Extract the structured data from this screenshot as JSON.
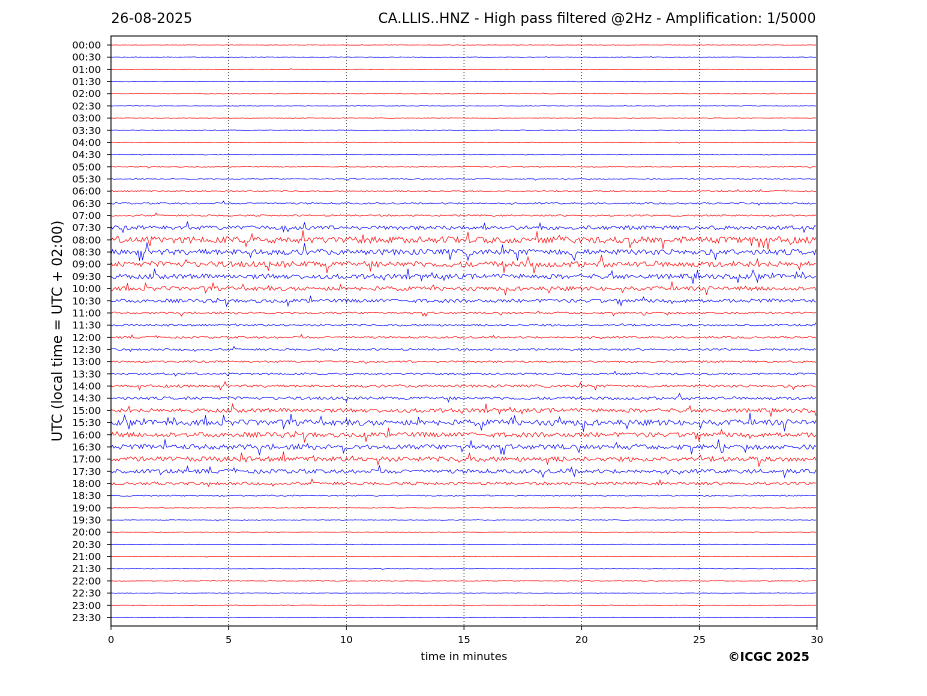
{
  "header": {
    "date": "26-08-2025",
    "title": "CA.LLIS..HNZ - High pass filtered @2Hz - Amplification: 1/5000"
  },
  "footer": {
    "copyright": "©ICGC 2025"
  },
  "chart_data": {
    "type": "line",
    "xlabel": "time in minutes",
    "ylabel": "UTC (local time = UTC + 02:00)",
    "xlim": [
      0,
      30
    ],
    "x_ticks": [
      0,
      5,
      10,
      15,
      20,
      25,
      30
    ],
    "grid": "vertical dotted lines at 5, 10, 15, 20, 25",
    "trace_colors": [
      "#ff0000",
      "#0000ff"
    ],
    "y_tick_labels": [
      "00:00",
      "00:30",
      "01:00",
      "01:30",
      "02:00",
      "02:30",
      "03:00",
      "03:30",
      "04:00",
      "04:30",
      "05:00",
      "05:30",
      "06:00",
      "06:30",
      "07:00",
      "07:30",
      "08:00",
      "08:30",
      "09:00",
      "09:30",
      "10:00",
      "10:30",
      "11:00",
      "11:30",
      "12:00",
      "12:30",
      "13:00",
      "13:30",
      "14:00",
      "14:30",
      "15:00",
      "15:30",
      "16:00",
      "16:30",
      "17:00",
      "17:30",
      "18:00",
      "18:30",
      "19:00",
      "19:30",
      "20:00",
      "20:30",
      "21:00",
      "21:30",
      "22:00",
      "22:30",
      "23:00",
      "23:30"
    ],
    "noise_level": [
      0.3,
      0.3,
      0.3,
      0.4,
      0.3,
      0.3,
      0.3,
      0.4,
      0.4,
      0.4,
      0.5,
      0.5,
      0.8,
      1.0,
      1.0,
      2.5,
      4.0,
      3.5,
      3.5,
      3.0,
      2.5,
      2.2,
      1.2,
      1.2,
      1.2,
      1.2,
      1.2,
      1.2,
      1.6,
      1.8,
      2.5,
      3.5,
      3.0,
      3.0,
      3.0,
      2.5,
      1.8,
      0.8,
      0.4,
      0.4,
      0.3,
      0.3,
      0.3,
      0.3,
      0.4,
      0.3,
      0.3,
      0.3
    ]
  }
}
